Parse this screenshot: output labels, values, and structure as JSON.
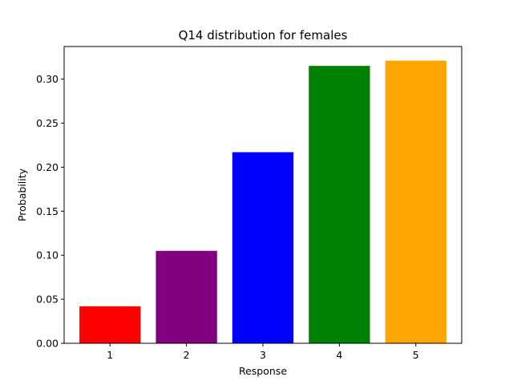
{
  "chart_data": {
    "type": "bar",
    "title": "Q14 distribution for females",
    "xlabel": "Response",
    "ylabel": "Probability",
    "categories": [
      "1",
      "2",
      "3",
      "4",
      "5"
    ],
    "values": [
      0.042,
      0.105,
      0.217,
      0.315,
      0.321
    ],
    "colors": [
      "#ff0000",
      "#800080",
      "#0000ff",
      "#008000",
      "#ffa500"
    ],
    "ylim": [
      0,
      0.337
    ],
    "yticks": [
      0.0,
      0.05,
      0.1,
      0.15,
      0.2,
      0.25,
      0.3
    ],
    "ytick_labels": [
      "0.00",
      "0.05",
      "0.10",
      "0.15",
      "0.20",
      "0.25",
      "0.30"
    ],
    "grid": false,
    "legend": "none"
  }
}
